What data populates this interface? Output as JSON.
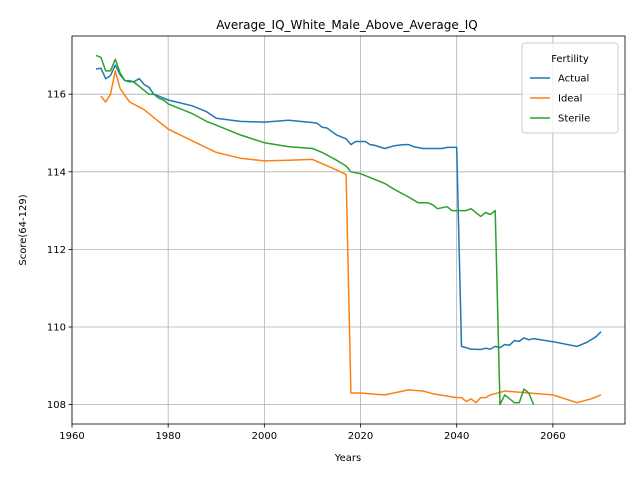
{
  "chart_data": {
    "type": "line",
    "title": "Average_IQ_White_Male_Above_Average_IQ",
    "xlabel": "Years",
    "ylabel": "Score(64-129)",
    "xlim": [
      1960,
      2075
    ],
    "ylim": [
      107.5,
      117.5
    ],
    "xticks": [
      1960,
      1980,
      2000,
      2020,
      2040,
      2060
    ],
    "yticks": [
      108,
      110,
      112,
      114,
      116
    ],
    "grid": true,
    "legend": {
      "title": "Fertility",
      "placement": "top-right"
    },
    "series": [
      {
        "name": "Actual",
        "color": "#1f77b4",
        "x": [
          1965,
          1966,
          1967,
          1968,
          1969,
          1970,
          1971,
          1972,
          1973,
          1974,
          1975,
          1976,
          1977,
          1978,
          1979,
          1980,
          1985,
          1988,
          1990,
          1995,
          2000,
          2005,
          2010,
          2011,
          2012,
          2013,
          2015,
          2017,
          2018,
          2019,
          2020,
          2021,
          2022,
          2023,
          2025,
          2027,
          2029,
          2030,
          2031,
          2033,
          2035,
          2036,
          2037,
          2038,
          2039,
          2040,
          2041,
          2043,
          2045,
          2046,
          2047,
          2048,
          2049,
          2050,
          2051,
          2052,
          2053,
          2054,
          2055,
          2056,
          2060,
          2065,
          2067,
          2069,
          2070
        ],
        "y": [
          116.65,
          116.67,
          116.4,
          116.48,
          116.75,
          116.5,
          116.35,
          116.32,
          116.33,
          116.4,
          116.25,
          116.18,
          116.0,
          115.95,
          115.9,
          115.85,
          115.7,
          115.55,
          115.38,
          115.3,
          115.28,
          115.33,
          115.27,
          115.25,
          115.15,
          115.13,
          114.95,
          114.85,
          114.7,
          114.78,
          114.78,
          114.78,
          114.7,
          114.68,
          114.6,
          114.67,
          114.7,
          114.7,
          114.65,
          114.6,
          114.6,
          114.6,
          114.6,
          114.63,
          114.63,
          114.63,
          109.5,
          109.43,
          109.42,
          109.45,
          109.43,
          109.5,
          109.47,
          109.55,
          109.53,
          109.65,
          109.63,
          109.72,
          109.67,
          109.7,
          109.62,
          109.5,
          109.6,
          109.75,
          109.88
        ]
      },
      {
        "name": "Ideal",
        "color": "#ff7f0e",
        "x": [
          1966,
          1967,
          1968,
          1969,
          1970,
          1971,
          1972,
          1975,
          1978,
          1980,
          1985,
          1990,
          1995,
          2000,
          2005,
          2010,
          2015,
          2017,
          2018,
          2019,
          2020,
          2025,
          2030,
          2033,
          2035,
          2040,
          2041,
          2042,
          2043,
          2044,
          2045,
          2046,
          2047,
          2048,
          2050,
          2055,
          2060,
          2065,
          2068,
          2070
        ],
        "y": [
          115.95,
          115.8,
          116.0,
          116.6,
          116.15,
          115.97,
          115.8,
          115.6,
          115.3,
          115.1,
          114.8,
          114.5,
          114.35,
          114.28,
          114.3,
          114.32,
          114.05,
          113.93,
          108.3,
          108.3,
          108.3,
          108.25,
          108.38,
          108.35,
          108.28,
          108.18,
          108.18,
          108.08,
          108.15,
          108.05,
          108.18,
          108.18,
          108.25,
          108.28,
          108.35,
          108.3,
          108.25,
          108.05,
          108.15,
          108.25
        ]
      },
      {
        "name": "Sterile",
        "color": "#2ca02c",
        "x": [
          1965,
          1966,
          1967,
          1968,
          1969,
          1970,
          1971,
          1972,
          1973,
          1974,
          1975,
          1976,
          1977,
          1978,
          1979,
          1980,
          1985,
          1988,
          1990,
          1995,
          2000,
          2005,
          2010,
          2012,
          2015,
          2017,
          2018,
          2020,
          2022,
          2025,
          2027,
          2030,
          2032,
          2034,
          2035,
          2036,
          2038,
          2039,
          2040,
          2042,
          2043,
          2045,
          2046,
          2047,
          2048,
          2049,
          2050,
          2051,
          2052,
          2053,
          2054,
          2055,
          2056
        ],
        "y": [
          117.0,
          116.95,
          116.6,
          116.6,
          116.9,
          116.55,
          116.35,
          116.35,
          116.3,
          116.2,
          116.1,
          116.0,
          116.0,
          115.9,
          115.85,
          115.75,
          115.5,
          115.3,
          115.2,
          114.95,
          114.75,
          114.65,
          114.6,
          114.5,
          114.3,
          114.15,
          114.0,
          113.95,
          113.85,
          113.7,
          113.55,
          113.35,
          113.2,
          113.2,
          113.15,
          113.05,
          113.1,
          113.0,
          113.0,
          113.0,
          113.05,
          112.85,
          112.95,
          112.9,
          113.0,
          108.0,
          108.25,
          108.15,
          108.05,
          108.05,
          108.4,
          108.3,
          108.0
        ]
      }
    ]
  }
}
